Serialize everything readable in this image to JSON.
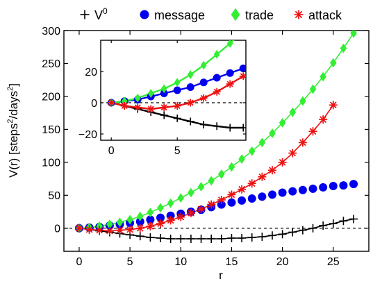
{
  "chart_data": [
    {
      "panel": "main",
      "type": "scatter",
      "xlabel": "r",
      "ylabel_main": "V(r) [steps",
      "ylabel_sup1": "2",
      "ylabel_mid": "/days",
      "ylabel_sup2": "2",
      "ylabel_end": "]",
      "xlim": [
        -1.5,
        28.5
      ],
      "ylim": [
        -35,
        300
      ],
      "xticks": [
        0,
        5,
        10,
        15,
        20,
        25
      ],
      "yticks": [
        0,
        50,
        100,
        150,
        200,
        250,
        300
      ],
      "grid": false,
      "legend": {
        "placement": "top (outside plot)",
        "entries": [
          {
            "label": "V",
            "label_sup": "0",
            "marker": "plus",
            "color": "#000000"
          },
          {
            "label": "message",
            "marker": "circle",
            "color": "#0000ee"
          },
          {
            "label": "trade",
            "marker": "diamond",
            "color": "#33ee33"
          },
          {
            "label": "attack",
            "marker": "asterisk",
            "color": "#ee1111"
          }
        ]
      },
      "series": [
        {
          "name": "V0",
          "marker": "plus",
          "color": "#000000",
          "x": [
            0,
            1,
            2,
            3,
            4,
            5,
            6,
            7,
            8,
            9,
            10,
            11,
            12,
            13,
            14,
            15,
            16,
            17,
            18,
            19,
            20,
            21,
            22,
            23,
            24,
            25,
            26,
            27
          ],
          "values": [
            0,
            -2,
            -4,
            -6,
            -8,
            -10,
            -12,
            -14,
            -15,
            -16,
            -16,
            -16,
            -16,
            -16,
            -16,
            -15,
            -15,
            -14,
            -13,
            -11,
            -9,
            -6,
            -3,
            0,
            4,
            7,
            11,
            14
          ],
          "fit_line": true
        },
        {
          "name": "message",
          "marker": "circle",
          "color": "#0000ee",
          "x": [
            0,
            1,
            2,
            3,
            4,
            5,
            6,
            7,
            8,
            9,
            10,
            11,
            12,
            13,
            14,
            15,
            16,
            17,
            18,
            19,
            20,
            21,
            22,
            23,
            24,
            25,
            26,
            27
          ],
          "values": [
            0,
            1,
            2,
            4,
            6,
            8,
            10,
            13,
            16,
            19,
            22,
            25,
            28,
            32,
            36,
            39,
            42,
            45,
            48,
            51,
            54,
            56,
            58,
            60,
            62,
            64,
            65,
            67
          ],
          "fit_line": false
        },
        {
          "name": "trade",
          "marker": "diamond",
          "color": "#33ee33",
          "x": [
            0,
            1,
            2,
            3,
            4,
            5,
            6,
            7,
            8,
            9,
            10,
            11,
            12,
            13,
            14,
            15,
            16,
            17,
            18,
            19,
            20,
            21,
            22,
            23,
            24,
            25,
            26,
            27
          ],
          "values": [
            0,
            1,
            3,
            6,
            9,
            13,
            18,
            24,
            31,
            38,
            46,
            54,
            63,
            72,
            82,
            93,
            105,
            117,
            130,
            144,
            160,
            176,
            193,
            211,
            230,
            251,
            273,
            296
          ],
          "fit_line": true
        },
        {
          "name": "attack",
          "marker": "asterisk",
          "color": "#ee1111",
          "x": [
            0,
            1,
            2,
            3,
            4,
            5,
            6,
            7,
            8,
            9,
            10,
            11,
            12,
            13,
            14,
            15,
            16,
            17,
            18,
            19,
            20,
            21,
            22,
            23,
            24,
            25
          ],
          "values": [
            0,
            -2,
            -3,
            -4,
            -3,
            -2,
            0,
            3,
            7,
            12,
            17,
            23,
            29,
            36,
            43,
            51,
            59,
            68,
            78,
            88,
            100,
            114,
            130,
            147,
            165,
            187
          ],
          "fit_line": true
        }
      ]
    },
    {
      "panel": "inset",
      "type": "scatter",
      "xlim": [
        -0.8,
        10.2
      ],
      "ylim": [
        -24,
        40
      ],
      "xticks": [
        0,
        5
      ],
      "yticks": [
        -20,
        0,
        20
      ],
      "ytick_labels": [
        "−20",
        "0",
        "20"
      ],
      "grid": false,
      "series": [
        {
          "name": "V0",
          "marker": "plus",
          "color": "#000000",
          "x": [
            0,
            1,
            2,
            3,
            4,
            5,
            6,
            7,
            8,
            9,
            10
          ],
          "values": [
            0,
            -2,
            -4,
            -6,
            -8,
            -10,
            -12,
            -14,
            -15,
            -16,
            -16
          ],
          "fit_line": true
        },
        {
          "name": "message",
          "marker": "circle",
          "color": "#0000ee",
          "x": [
            0,
            1,
            2,
            3,
            4,
            5,
            6,
            7,
            8,
            9,
            10
          ],
          "values": [
            0,
            1,
            2,
            4,
            6,
            8,
            10,
            13,
            16,
            19,
            22
          ],
          "fit_line": true
        },
        {
          "name": "trade",
          "marker": "diamond",
          "color": "#33ee33",
          "x": [
            0,
            1,
            2,
            3,
            4,
            5,
            6,
            7,
            8,
            9,
            10
          ],
          "values": [
            0,
            1,
            3,
            6,
            9,
            13,
            18,
            24,
            31,
            38,
            46
          ],
          "fit_line": true
        },
        {
          "name": "attack",
          "marker": "asterisk",
          "color": "#ee1111",
          "x": [
            0,
            1,
            2,
            3,
            4,
            5,
            6,
            7,
            8,
            9,
            10
          ],
          "values": [
            0,
            -2,
            -3,
            -4,
            -3,
            -2,
            0,
            3,
            7,
            12,
            17
          ],
          "fit_line": true
        }
      ]
    }
  ]
}
